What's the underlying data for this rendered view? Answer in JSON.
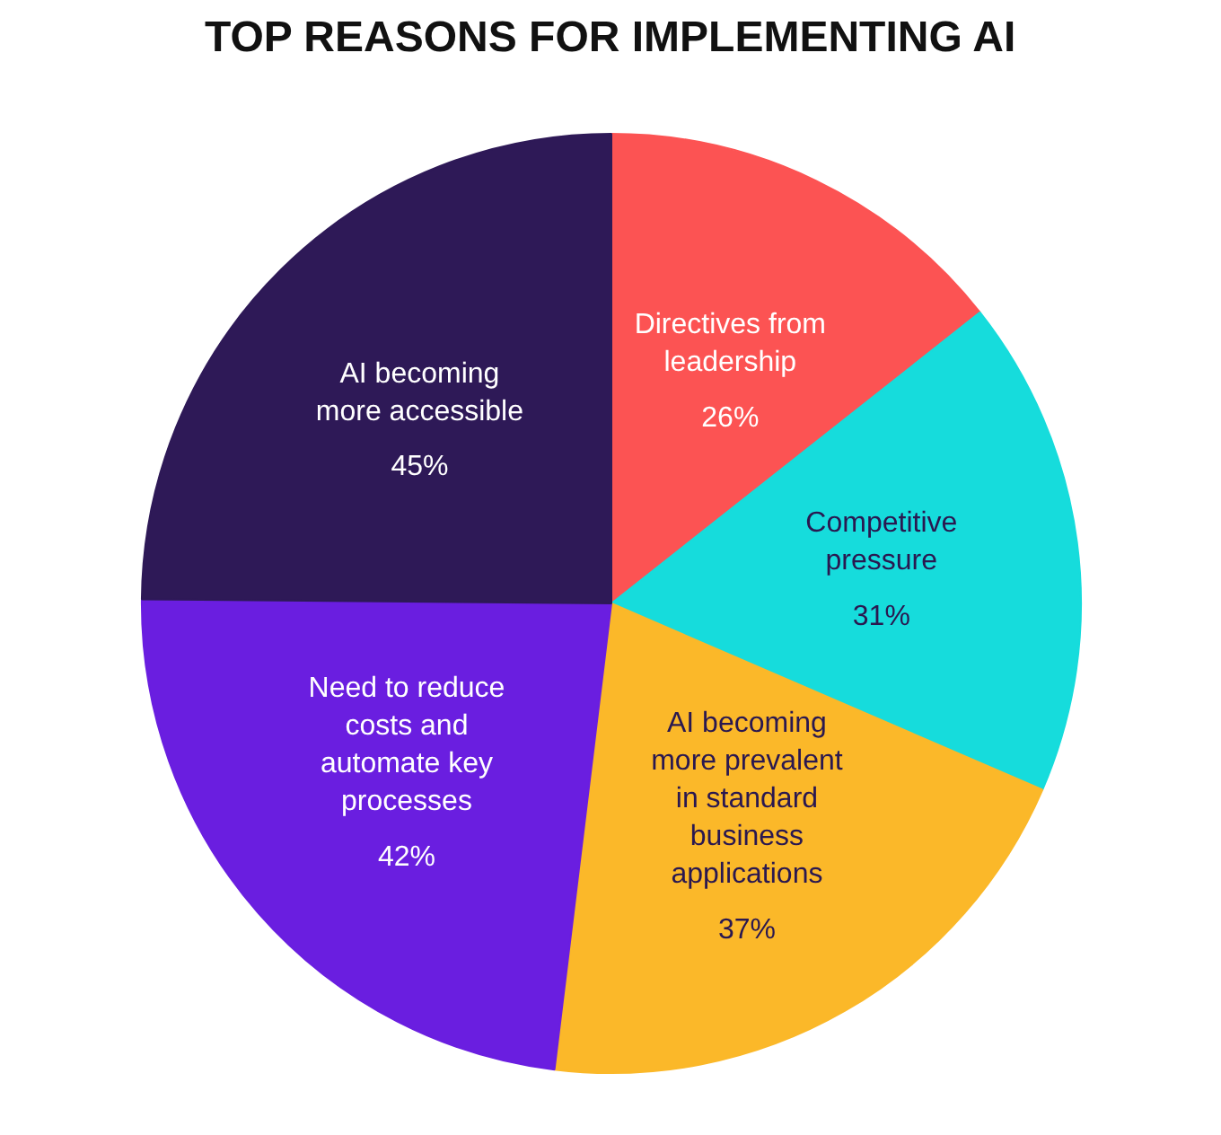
{
  "chart_data": {
    "type": "pie",
    "title": "TOP REASONS FOR IMPLEMENTING AI",
    "categories": [
      "Directives from leadership",
      "Competitive pressure",
      "AI becoming more prevalent in standard business applications",
      "Need to reduce costs and automate key processes",
      "AI becoming more accessible"
    ],
    "values": [
      26,
      31,
      37,
      42,
      45
    ],
    "value_labels": [
      "26%",
      "31%",
      "37%",
      "42%",
      "45%"
    ],
    "colors": [
      "#fc5353",
      "#16dcdc",
      "#fbb829",
      "#6a1ee0",
      "#2e1957"
    ]
  }
}
